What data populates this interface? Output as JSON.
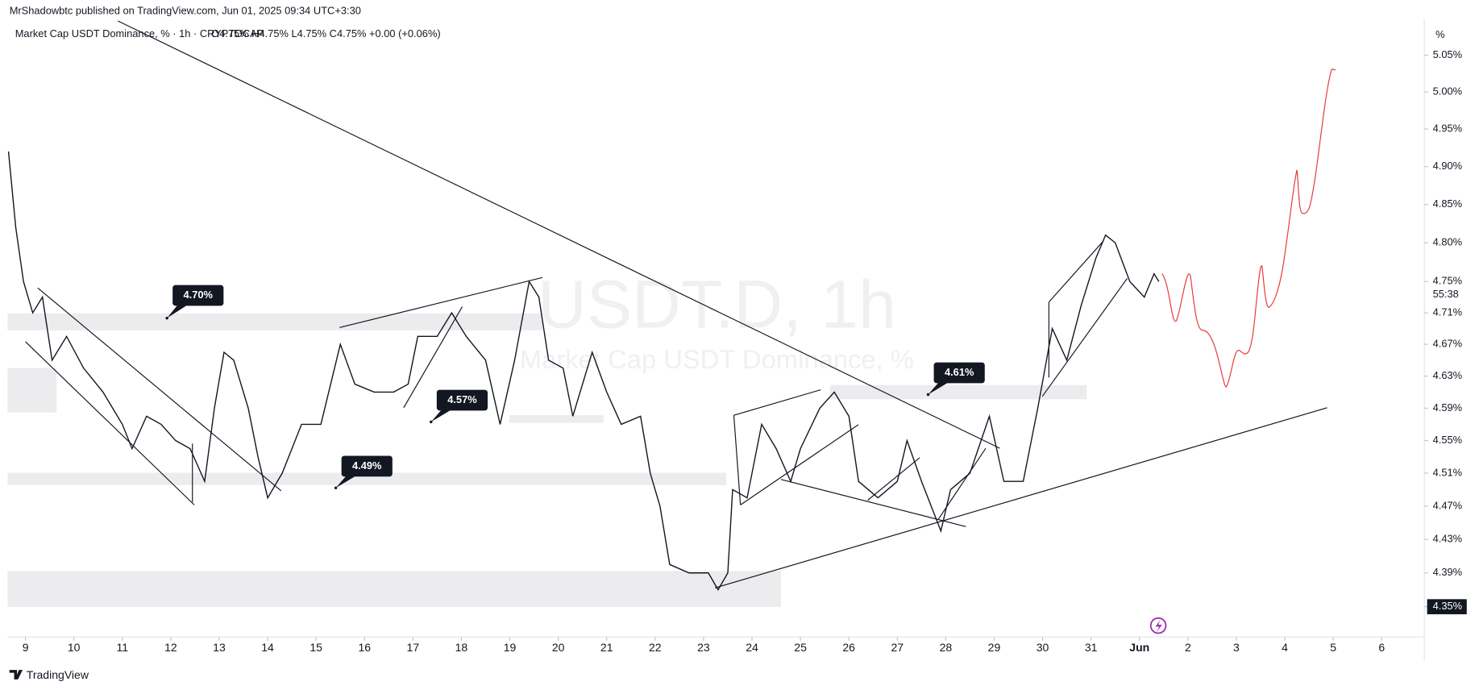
{
  "header": {
    "publisher": "MrShadowbtc published on TradingView.com, Jun 01, 2025 09:34 UTC+3:30",
    "symbol": "Market Cap USDT Dominance, % · 1h · CRYPTOCAP",
    "ohlc": "O4.75%  H4.75%  L4.75%  C4.75%  +0.00 (+0.06%)"
  },
  "footer": {
    "brand": "TradingView"
  },
  "chart_data": {
    "type": "line",
    "watermark": "USDT.D, 1h",
    "watermark_sub": "Market Cap USDT Dominance, %",
    "y_unit": "%",
    "countdown": "55:38",
    "log_scale": true,
    "grid": false,
    "color": "#131722",
    "x": [
      8.65,
      8.8,
      8.96,
      9.15,
      9.35,
      9.55,
      9.85,
      10.2,
      10.6,
      11.0,
      11.2,
      11.5,
      11.8,
      12.1,
      12.4,
      12.7,
      12.9,
      13.1,
      13.3,
      13.6,
      13.8,
      14.0,
      14.3,
      14.7,
      15.1,
      15.5,
      15.8,
      16.2,
      16.6,
      16.9,
      17.1,
      17.5,
      17.8,
      18.1,
      18.5,
      18.8,
      19.1,
      19.4,
      19.6,
      19.8,
      20.1,
      20.3,
      20.7,
      21.0,
      21.3,
      21.7,
      21.9,
      22.1,
      22.3,
      22.7,
      23.1,
      23.3,
      23.5,
      23.6,
      23.9,
      24.2,
      24.5,
      24.8,
      25.0,
      25.4,
      25.7,
      26.0,
      26.2,
      26.6,
      27.0,
      27.2,
      27.5,
      27.9,
      28.1,
      28.5,
      28.9,
      29.2,
      29.6,
      29.9,
      30.2,
      30.5,
      30.8,
      31.1,
      31.3,
      31.5,
      31.8,
      32.1,
      32.3,
      32.4
    ],
    "values": [
      4.92,
      4.82,
      4.75,
      4.71,
      4.73,
      4.65,
      4.68,
      4.64,
      4.61,
      4.57,
      4.54,
      4.58,
      4.57,
      4.55,
      4.54,
      4.5,
      4.59,
      4.66,
      4.65,
      4.59,
      4.53,
      4.48,
      4.51,
      4.57,
      4.57,
      4.67,
      4.62,
      4.61,
      4.61,
      4.62,
      4.68,
      4.68,
      4.71,
      4.68,
      4.65,
      4.57,
      4.65,
      4.75,
      4.73,
      4.65,
      4.64,
      4.58,
      4.66,
      4.61,
      4.57,
      4.58,
      4.51,
      4.47,
      4.4,
      4.39,
      4.39,
      4.37,
      4.39,
      4.49,
      4.48,
      4.57,
      4.54,
      4.5,
      4.54,
      4.59,
      4.61,
      4.58,
      4.5,
      4.48,
      4.5,
      4.55,
      4.5,
      4.44,
      4.49,
      4.51,
      4.58,
      4.5,
      4.5,
      4.59,
      4.69,
      4.65,
      4.72,
      4.78,
      4.81,
      4.8,
      4.75,
      4.73,
      4.76,
      4.75
    ],
    "xlim": [
      8.6,
      37.8
    ],
    "xticks": [
      9,
      10,
      11,
      12,
      13,
      14,
      15,
      16,
      17,
      18,
      19,
      20,
      21,
      22,
      23,
      24,
      25,
      26,
      27,
      28,
      29,
      30,
      31,
      {
        "value": 32,
        "label": "Jun"
      },
      {
        "value": 33,
        "label": "2"
      },
      {
        "value": 34,
        "label": "3"
      },
      {
        "value": 35,
        "label": "4"
      },
      {
        "value": 36,
        "label": "5"
      },
      {
        "value": 37,
        "label": "6"
      }
    ],
    "ylim": [
      4.33,
      5.08
    ],
    "yticks": [
      {
        "value": 5.05,
        "label": "5.05%"
      },
      {
        "value": 5.0,
        "label": "5.00%"
      },
      {
        "value": 4.95,
        "label": "4.95%"
      },
      {
        "value": 4.9,
        "label": "4.90%"
      },
      {
        "value": 4.85,
        "label": "4.85%"
      },
      {
        "value": 4.8,
        "label": "4.80%"
      },
      {
        "value": 4.75,
        "label": "4.75%"
      },
      {
        "value": 4.71,
        "label": "4.71%"
      },
      {
        "value": 4.67,
        "label": "4.67%"
      },
      {
        "value": 4.63,
        "label": "4.63%"
      },
      {
        "value": 4.59,
        "label": "4.59%"
      },
      {
        "value": 4.55,
        "label": "4.55%"
      },
      {
        "value": 4.51,
        "label": "4.51%"
      },
      {
        "value": 4.47,
        "label": "4.47%"
      },
      {
        "value": 4.43,
        "label": "4.43%"
      },
      {
        "value": 4.39,
        "label": "4.39%"
      },
      {
        "value": 4.35,
        "label": "4.35%"
      }
    ],
    "annotations": [
      "4.70%",
      "4.57%",
      "4.49%",
      "4.61%"
    ]
  }
}
